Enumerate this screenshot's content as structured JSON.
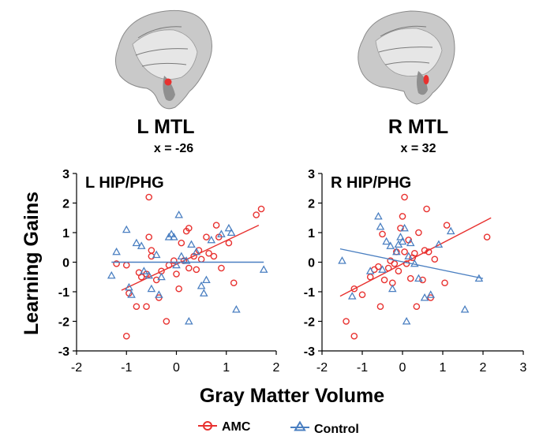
{
  "figure": {
    "ylabel": "Learning Gains",
    "xlabel": "Gray Matter Volume"
  },
  "brains": [
    {
      "title": "L MTL",
      "coord": "x = -26"
    },
    {
      "title": "R MTL",
      "coord": "x = 32"
    }
  ],
  "legend": {
    "position": "bottom-center",
    "items": [
      {
        "label": "AMC",
        "marker": "circle"
      },
      {
        "label": "Control",
        "marker": "triangle"
      }
    ]
  },
  "colors": {
    "amc": "#e8312f",
    "control": "#4a7fc1",
    "axis": "#000000"
  },
  "chart_data": [
    {
      "type": "scatter",
      "title": "L HIP/PHG",
      "xlim": [
        -2,
        2
      ],
      "ylim": [
        -3,
        3
      ],
      "xticks": [
        -2,
        -1,
        0,
        1,
        2
      ],
      "yticks": [
        -3,
        -2,
        -1,
        0,
        1,
        2,
        3
      ],
      "grid": false,
      "series": [
        {
          "name": "AMC",
          "marker": "circle",
          "points": [
            [
              -1.0,
              -2.5
            ],
            [
              -1.2,
              -0.05
            ],
            [
              -1.0,
              -0.1
            ],
            [
              -0.95,
              -1.05
            ],
            [
              -0.8,
              -1.5
            ],
            [
              -0.75,
              -0.35
            ],
            [
              -0.7,
              -0.5
            ],
            [
              -0.6,
              -0.4
            ],
            [
              -0.6,
              -1.5
            ],
            [
              -0.55,
              2.2
            ],
            [
              -0.55,
              0.85
            ],
            [
              -0.5,
              0.4
            ],
            [
              -0.5,
              0.2
            ],
            [
              -0.4,
              -0.6
            ],
            [
              -0.35,
              -1.2
            ],
            [
              -0.3,
              -0.3
            ],
            [
              -0.2,
              -2.0
            ],
            [
              -0.15,
              -0.1
            ],
            [
              -0.05,
              0.05
            ],
            [
              0.0,
              -0.4
            ],
            [
              0.05,
              -0.9
            ],
            [
              0.1,
              0.65
            ],
            [
              0.15,
              0.05
            ],
            [
              0.2,
              1.05
            ],
            [
              0.25,
              1.15
            ],
            [
              0.25,
              -0.2
            ],
            [
              0.35,
              0.2
            ],
            [
              0.4,
              -0.25
            ],
            [
              0.45,
              0.4
            ],
            [
              0.5,
              0.1
            ],
            [
              0.6,
              0.85
            ],
            [
              0.65,
              0.3
            ],
            [
              0.75,
              0.2
            ],
            [
              0.8,
              1.25
            ],
            [
              0.85,
              0.85
            ],
            [
              0.9,
              -0.2
            ],
            [
              1.05,
              0.65
            ],
            [
              1.15,
              -0.7
            ],
            [
              1.6,
              1.6
            ],
            [
              1.7,
              1.8
            ]
          ],
          "fit": {
            "x": [
              -1.1,
              1.65
            ],
            "y": [
              -0.95,
              1.25
            ]
          }
        },
        {
          "name": "Control",
          "marker": "triangle",
          "points": [
            [
              -1.3,
              -0.45
            ],
            [
              -1.2,
              0.35
            ],
            [
              -1.0,
              1.1
            ],
            [
              -0.95,
              -0.85
            ],
            [
              -0.9,
              -1.1
            ],
            [
              -0.8,
              0.65
            ],
            [
              -0.7,
              0.55
            ],
            [
              -0.65,
              -0.3
            ],
            [
              -0.55,
              -0.45
            ],
            [
              -0.5,
              -0.9
            ],
            [
              -0.4,
              0.25
            ],
            [
              -0.35,
              -1.1
            ],
            [
              -0.3,
              -0.5
            ],
            [
              -0.15,
              0.85
            ],
            [
              -0.1,
              0.95
            ],
            [
              -0.05,
              0.85
            ],
            [
              0.0,
              -0.1
            ],
            [
              0.05,
              1.6
            ],
            [
              0.1,
              0.2
            ],
            [
              0.2,
              0.05
            ],
            [
              0.25,
              -2.0
            ],
            [
              0.3,
              0.6
            ],
            [
              0.4,
              0.35
            ],
            [
              0.5,
              -0.8
            ],
            [
              0.55,
              -1.05
            ],
            [
              0.6,
              -0.6
            ],
            [
              0.7,
              0.75
            ],
            [
              0.9,
              0.95
            ],
            [
              1.05,
              1.15
            ],
            [
              1.1,
              1.0
            ],
            [
              1.2,
              -1.6
            ],
            [
              1.75,
              -0.25
            ]
          ],
          "fit": {
            "x": [
              -1.3,
              1.75
            ],
            "y": [
              0.0,
              0.0
            ]
          }
        }
      ]
    },
    {
      "type": "scatter",
      "title": "R HIP/PHG",
      "xlim": [
        -2,
        3
      ],
      "ylim": [
        -3,
        3
      ],
      "xticks": [
        -2,
        -1,
        0,
        1,
        2,
        3
      ],
      "yticks": [
        -3,
        -2,
        -1,
        0,
        1,
        2,
        3
      ],
      "grid": false,
      "series": [
        {
          "name": "AMC",
          "marker": "circle",
          "points": [
            [
              -1.4,
              -2.0
            ],
            [
              -1.2,
              -0.9
            ],
            [
              -1.2,
              -2.5
            ],
            [
              -1.0,
              -1.1
            ],
            [
              -0.8,
              -0.5
            ],
            [
              -0.7,
              -0.25
            ],
            [
              -0.6,
              -0.15
            ],
            [
              -0.55,
              -1.5
            ],
            [
              -0.5,
              0.95
            ],
            [
              -0.45,
              -0.6
            ],
            [
              -0.35,
              -0.2
            ],
            [
              -0.3,
              0.05
            ],
            [
              -0.25,
              -0.7
            ],
            [
              -0.2,
              -0.05
            ],
            [
              -0.15,
              0.35
            ],
            [
              -0.1,
              -0.3
            ],
            [
              -0.05,
              1.15
            ],
            [
              0.0,
              1.55
            ],
            [
              0.05,
              2.2
            ],
            [
              0.05,
              0.35
            ],
            [
              0.1,
              -0.05
            ],
            [
              0.15,
              0.75
            ],
            [
              0.2,
              -0.55
            ],
            [
              0.25,
              0.15
            ],
            [
              0.3,
              0.3
            ],
            [
              0.35,
              -1.5
            ],
            [
              0.4,
              1.0
            ],
            [
              0.5,
              -0.6
            ],
            [
              0.55,
              0.4
            ],
            [
              0.6,
              1.8
            ],
            [
              0.65,
              0.35
            ],
            [
              0.7,
              -1.2
            ],
            [
              0.8,
              0.1
            ],
            [
              1.05,
              -0.7
            ],
            [
              1.1,
              1.25
            ],
            [
              2.1,
              0.85
            ]
          ],
          "fit": {
            "x": [
              -1.55,
              2.2
            ],
            "y": [
              -1.15,
              1.5
            ]
          }
        },
        {
          "name": "Control",
          "marker": "triangle",
          "points": [
            [
              -1.5,
              0.05
            ],
            [
              -1.25,
              -1.15
            ],
            [
              -0.8,
              -0.3
            ],
            [
              -0.6,
              1.55
            ],
            [
              -0.55,
              1.2
            ],
            [
              -0.5,
              -0.25
            ],
            [
              -0.4,
              0.7
            ],
            [
              -0.3,
              0.55
            ],
            [
              -0.25,
              -0.9
            ],
            [
              -0.15,
              0.35
            ],
            [
              -0.1,
              0.6
            ],
            [
              -0.05,
              0.85
            ],
            [
              0.0,
              0.7
            ],
            [
              0.05,
              1.15
            ],
            [
              0.1,
              -2.0
            ],
            [
              0.15,
              0.2
            ],
            [
              0.2,
              0.65
            ],
            [
              0.3,
              -0.05
            ],
            [
              0.4,
              -0.55
            ],
            [
              0.55,
              -1.2
            ],
            [
              0.7,
              -1.1
            ],
            [
              0.9,
              0.6
            ],
            [
              1.2,
              1.05
            ],
            [
              1.55,
              -1.6
            ],
            [
              1.9,
              -0.55
            ]
          ],
          "fit": {
            "x": [
              -1.55,
              2.0
            ],
            "y": [
              0.45,
              -0.55
            ]
          }
        }
      ]
    }
  ]
}
